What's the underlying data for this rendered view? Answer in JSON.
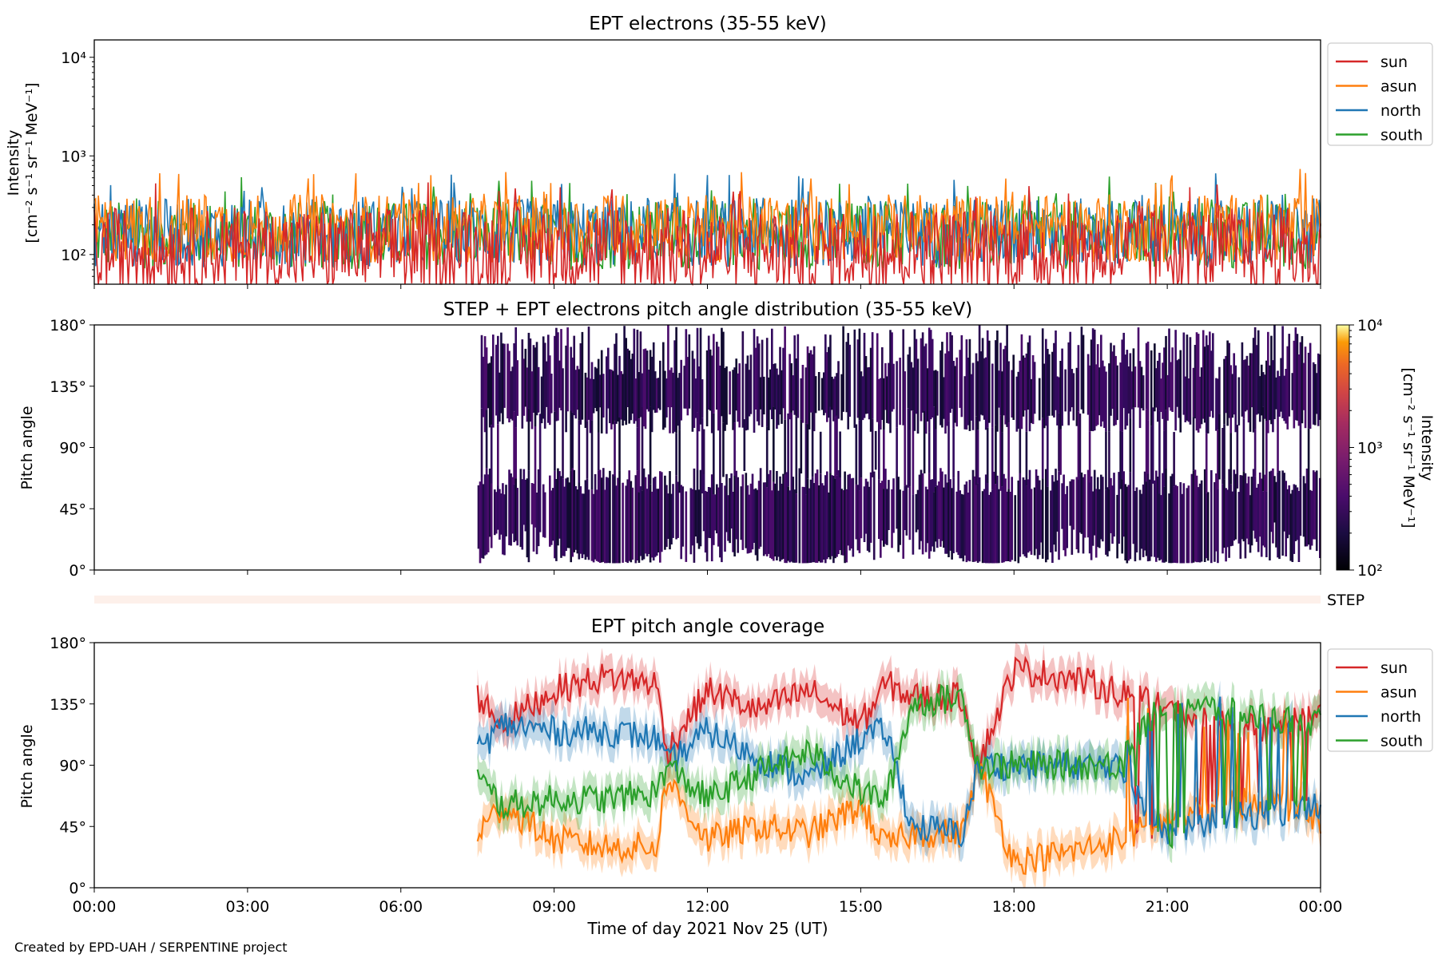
{
  "credit": "Created by EPD-UAH / SERPENTINE project",
  "colors": {
    "sun": "#d62728",
    "asun": "#ff7f0e",
    "north": "#1f77b4",
    "south": "#2ca02c",
    "step_bar": "#fdf0ea"
  },
  "chart_data": [
    {
      "type": "line",
      "title": "EPT electrons (35-55 keV)",
      "ylabel": [
        "Intensity",
        "[cm⁻² s⁻¹ sr⁻¹ MeV⁻¹]"
      ],
      "yscale": "log",
      "ylim": [
        50,
        15000
      ],
      "yticks": [
        {
          "v": 100,
          "label": "10²"
        },
        {
          "v": 1000,
          "label": "10³"
        },
        {
          "v": 10000,
          "label": "10⁴"
        }
      ],
      "x_unit": "hours",
      "xlim": [
        0,
        24
      ],
      "legend": "outside-right",
      "series": [
        {
          "name": "sun",
          "color": "#d62728",
          "typical": 120,
          "spread": 0.45
        },
        {
          "name": "asun",
          "color": "#ff7f0e",
          "typical": 200,
          "spread": 0.35
        },
        {
          "name": "north",
          "color": "#1f77b4",
          "typical": 180,
          "spread": 0.35
        },
        {
          "name": "south",
          "color": "#2ca02c",
          "typical": 170,
          "spread": 0.35
        }
      ],
      "noisy_background": true
    },
    {
      "type": "heatmap",
      "title": "STEP + EPT electrons pitch angle distribution (35-55 keV)",
      "ylabel": "Pitch angle",
      "ylim": [
        0,
        180
      ],
      "yticks": [
        "0°",
        "45°",
        "90°",
        "135°",
        "180°"
      ],
      "xlim": [
        0,
        24
      ],
      "data_start_hour": 7.5,
      "colorbar": {
        "label": [
          "Intensity",
          "[cm⁻² s⁻¹ sr⁻¹ MeV⁻¹]"
        ],
        "scale": "log",
        "ticks": [
          {
            "v": 100,
            "label": "10²"
          },
          {
            "v": 1000,
            "label": "10³"
          },
          {
            "v": 10000,
            "label": "10⁴"
          }
        ],
        "colormap": "inferno"
      },
      "step_label": "STEP"
    },
    {
      "type": "line",
      "title": "EPT pitch angle coverage",
      "ylabel": "Pitch angle",
      "ylim": [
        0,
        180
      ],
      "yticks": [
        "0°",
        "45°",
        "90°",
        "135°",
        "180°"
      ],
      "xlabel": "Time of day 2021 Nov 25 (UT)",
      "xlim": [
        0,
        24
      ],
      "xticks": [
        "00:00",
        "03:00",
        "06:00",
        "09:00",
        "12:00",
        "15:00",
        "18:00",
        "21:00",
        "00:00"
      ],
      "data_start_hour": 7.5,
      "legend": "outside-right",
      "shaded_bands": true,
      "series": [
        {
          "name": "sun",
          "color": "#d62728",
          "anchors": [
            [
              7.5,
              140
            ],
            [
              8,
              120
            ],
            [
              9,
              145
            ],
            [
              10,
              155
            ],
            [
              11,
              150
            ],
            [
              11.2,
              100
            ],
            [
              12,
              145
            ],
            [
              13,
              130
            ],
            [
              14,
              145
            ],
            [
              15,
              120
            ],
            [
              15.5,
              150
            ],
            [
              16,
              140
            ],
            [
              17,
              140
            ],
            [
              17.3,
              90
            ],
            [
              18,
              160
            ],
            [
              19,
              155
            ],
            [
              20,
              145
            ],
            [
              21,
              130
            ],
            [
              22,
              120
            ],
            [
              23,
              115
            ],
            [
              24,
              130
            ]
          ]
        },
        {
          "name": "asun",
          "color": "#ff7f0e",
          "anchors": [
            [
              7.5,
              40
            ],
            [
              8,
              60
            ],
            [
              9,
              35
            ],
            [
              10,
              30
            ],
            [
              11,
              30
            ],
            [
              11.2,
              80
            ],
            [
              12,
              35
            ],
            [
              13,
              45
            ],
            [
              14,
              40
            ],
            [
              15,
              60
            ],
            [
              15.5,
              30
            ],
            [
              16,
              40
            ],
            [
              17,
              40
            ],
            [
              17.3,
              90
            ],
            [
              18,
              20
            ],
            [
              19,
              25
            ],
            [
              20,
              35
            ],
            [
              21,
              50
            ],
            [
              22,
              60
            ],
            [
              23,
              65
            ],
            [
              24,
              50
            ]
          ]
        },
        {
          "name": "north",
          "color": "#1f77b4",
          "anchors": [
            [
              7.5,
              100
            ],
            [
              8,
              120
            ],
            [
              9,
              115
            ],
            [
              10,
              115
            ],
            [
              11,
              110
            ],
            [
              11.2,
              90
            ],
            [
              12,
              115
            ],
            [
              13,
              95
            ],
            [
              14,
              80
            ],
            [
              15,
              110
            ],
            [
              15.5,
              115
            ],
            [
              16,
              45
            ],
            [
              17,
              40
            ],
            [
              17.3,
              90
            ],
            [
              18,
              90
            ],
            [
              19,
              90
            ],
            [
              20,
              90
            ],
            [
              21,
              40
            ],
            [
              22,
              50
            ],
            [
              23,
              55
            ],
            [
              24,
              60
            ]
          ]
        },
        {
          "name": "south",
          "color": "#2ca02c",
          "anchors": [
            [
              7.5,
              80
            ],
            [
              8,
              60
            ],
            [
              9,
              65
            ],
            [
              10,
              65
            ],
            [
              11,
              70
            ],
            [
              11.2,
              90
            ],
            [
              12,
              65
            ],
            [
              13,
              85
            ],
            [
              14,
              100
            ],
            [
              15,
              70
            ],
            [
              15.5,
              65
            ],
            [
              16,
              135
            ],
            [
              17,
              140
            ],
            [
              17.3,
              90
            ],
            [
              18,
              90
            ],
            [
              19,
              90
            ],
            [
              20,
              90
            ],
            [
              21,
              140
            ],
            [
              22,
              130
            ],
            [
              23,
              125
            ],
            [
              24,
              120
            ]
          ]
        }
      ]
    }
  ]
}
